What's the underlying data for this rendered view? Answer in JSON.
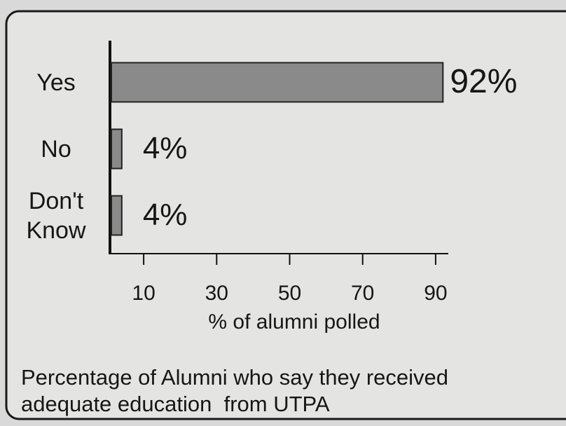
{
  "chart_data": {
    "type": "bar",
    "orientation": "horizontal",
    "categories": [
      "Yes",
      "No",
      "Don't Know"
    ],
    "values": [
      92,
      4,
      4
    ],
    "value_labels": [
      "92%",
      "4%",
      "4%"
    ],
    "color": "#8a8a8a",
    "xlim": [
      0,
      100
    ],
    "xticks": [
      10,
      30,
      50,
      70,
      90
    ],
    "xlabel": "% of alumni polled",
    "title": "Percentage of Alumni who say they received adequate education  from UTPA"
  }
}
